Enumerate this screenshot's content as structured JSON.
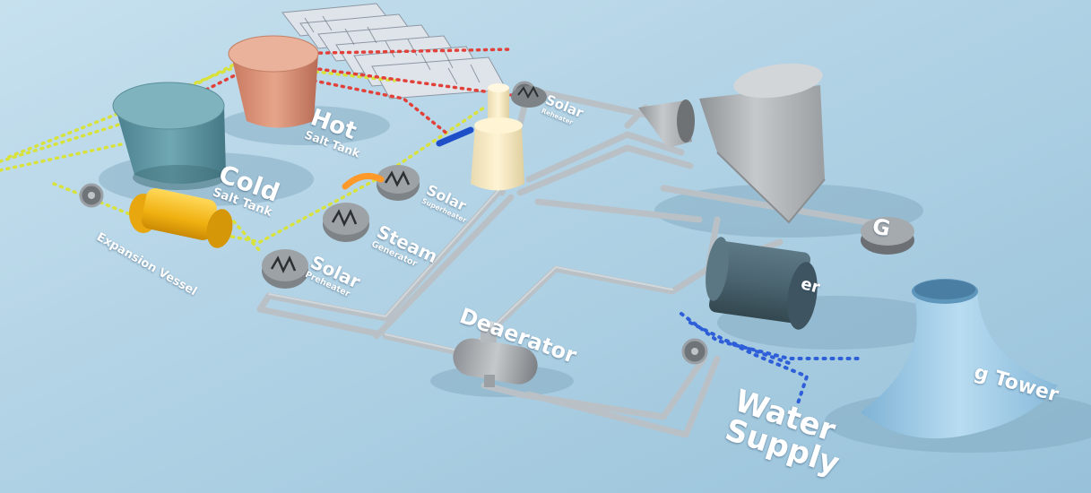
{
  "colors": {
    "background": "#a9cde0",
    "pipe": "#b9c1c7",
    "hot_salt_line": "#e2413a",
    "cold_salt_line": "#d8e23a",
    "water_line": "#2f5fd8",
    "hot_tank": "#d79277",
    "cold_tank": "#5f97a3",
    "expansion_vessel": "#f2b81d",
    "deaerator": "#c9cfd3",
    "heat_exchanger": "#8d9296",
    "tower": "#9cc9e6",
    "turbine": "#a3a7ab",
    "condenser": "#46606d",
    "label": "#ffffff"
  },
  "labels": {
    "hot_tank": {
      "main": "Hot",
      "sub": "Salt Tank"
    },
    "cold_tank": {
      "main": "Cold",
      "sub": "Salt Tank"
    },
    "expansion_vessel": "Expansion Vessel",
    "solar_preheater": {
      "main": "Solar",
      "sub": "Preheater"
    },
    "steam_generator": {
      "main": "Steam",
      "sub": "Generator"
    },
    "solar_superheater": {
      "main": "Solar",
      "sub": "Superheater"
    },
    "solar_reheater": {
      "main": "Solar",
      "sub": "Reheater"
    },
    "deaerator": "Deaerator",
    "condenser_partial": "er",
    "water_supply_line1": "Water",
    "water_supply_line2": "Supply",
    "cooling_tower_partial": "g Tower",
    "generator": "G"
  },
  "icons": {
    "heat_exchanger": "zigzag-coil-icon",
    "pump": "pump-icon",
    "generator": "generator-icon"
  }
}
